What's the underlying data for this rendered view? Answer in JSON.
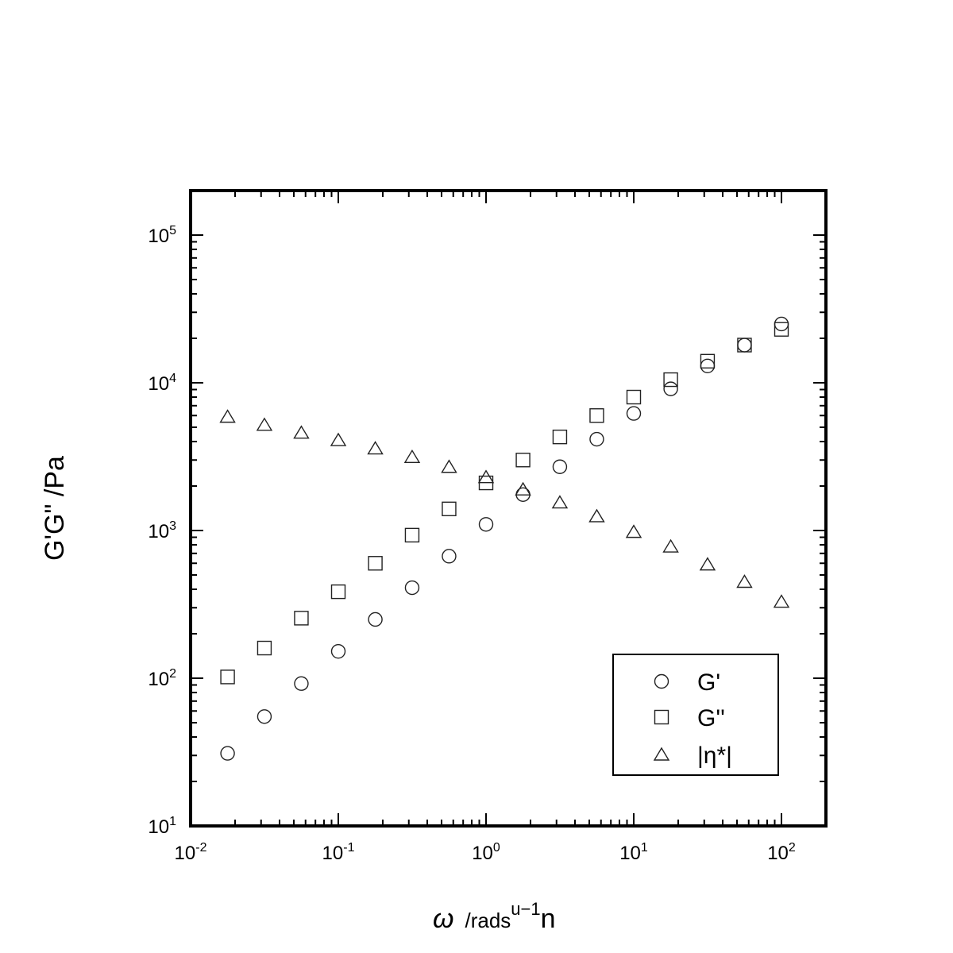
{
  "chart_data": {
    "type": "scatter",
    "x_scale": "log",
    "y_scale": "log",
    "xlim": [
      0.01,
      200
    ],
    "ylim": [
      10,
      200000
    ],
    "x_ticks": [
      {
        "value": 0.01,
        "base": "10",
        "exp": "-2"
      },
      {
        "value": 0.1,
        "base": "10",
        "exp": "-1"
      },
      {
        "value": 1,
        "base": "10",
        "exp": "0"
      },
      {
        "value": 10,
        "base": "10",
        "exp": "1"
      },
      {
        "value": 100,
        "base": "10",
        "exp": "2"
      }
    ],
    "y_ticks": [
      {
        "value": 10,
        "base": "10",
        "exp": "1"
      },
      {
        "value": 100,
        "base": "10",
        "exp": "2"
      },
      {
        "value": 1000,
        "base": "10",
        "exp": "3"
      },
      {
        "value": 10000,
        "base": "10",
        "exp": "4"
      },
      {
        "value": 100000,
        "base": "10",
        "exp": "5"
      }
    ],
    "xlabel": {
      "symbol": "ω",
      "unit": "/rads",
      "sup": "u−1",
      "tail": "n"
    },
    "ylabel": "G'G\" /Pa",
    "grid": false,
    "legend_position": "lower-right",
    "x": [
      0.0178,
      0.0316,
      0.0562,
      0.1,
      0.178,
      0.316,
      0.562,
      1.0,
      1.78,
      3.16,
      5.62,
      10.0,
      17.8,
      31.6,
      56.2,
      100.0
    ],
    "series": [
      {
        "name": "G'",
        "marker": "circle",
        "values": [
          31,
          55,
          92,
          152,
          250,
          410,
          670,
          1100,
          1750,
          2700,
          4150,
          6200,
          9100,
          13000,
          18000,
          25000
        ]
      },
      {
        "name": "G''",
        "marker": "square",
        "values": [
          102,
          160,
          255,
          385,
          600,
          930,
          1400,
          2100,
          3000,
          4300,
          6000,
          8000,
          10500,
          14000,
          18000,
          23000
        ]
      },
      {
        "name": "|η*|",
        "marker": "triangle",
        "values": [
          5900,
          5200,
          4600,
          4100,
          3600,
          3150,
          2700,
          2300,
          1900,
          1550,
          1250,
          980,
          780,
          590,
          450,
          330
        ]
      }
    ]
  }
}
